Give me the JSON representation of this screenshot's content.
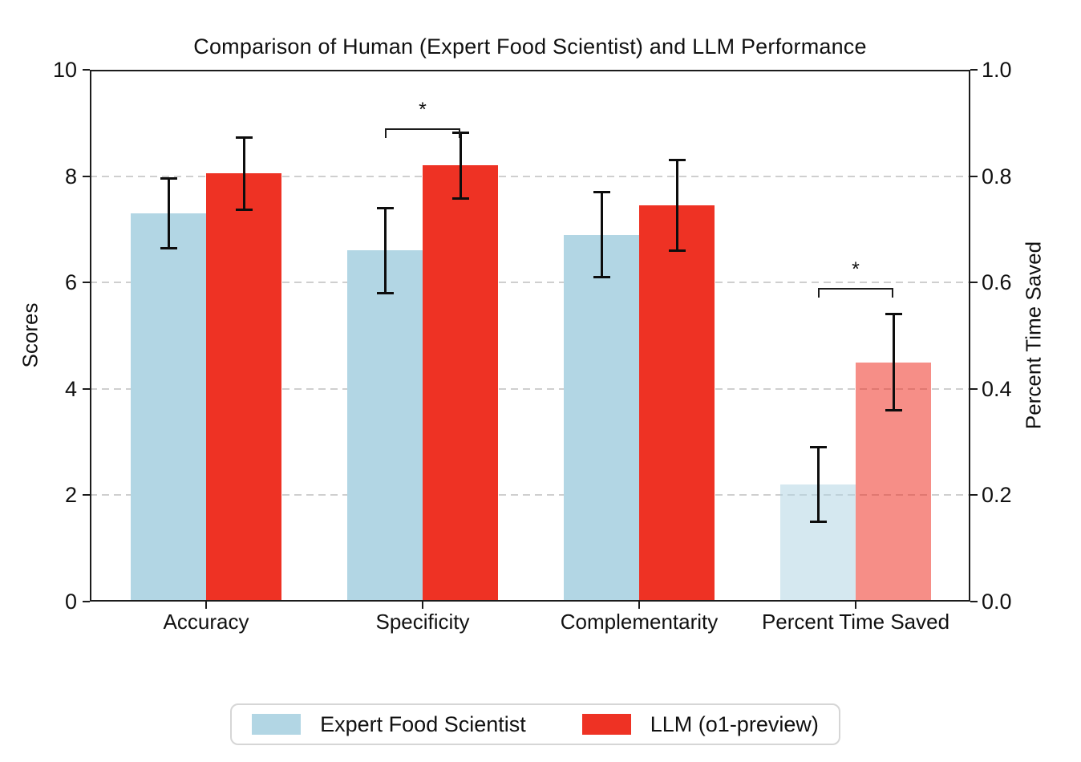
{
  "page": {
    "background": "#ffffff",
    "text_color": "#111111",
    "axis_color": "#1c1c1c",
    "gridline_color": "#cfcfcf"
  },
  "chart_data": {
    "type": "bar",
    "title": "Comparison of Human (Expert Food Scientist) and LLM Performance",
    "categories": [
      "Accuracy",
      "Specificity",
      "Complementarity",
      "Percent Time Saved"
    ],
    "category_axis": [
      "left",
      "left",
      "left",
      "right"
    ],
    "left_axis": {
      "label": "Scores",
      "ticks": [
        0,
        2,
        4,
        6,
        8,
        10
      ],
      "lim": [
        0,
        10
      ]
    },
    "right_axis": {
      "label": "Percent Time Saved",
      "ticks": [
        "0.0",
        "0.2",
        "0.4",
        "0.6",
        "0.8",
        "1.0"
      ],
      "tick_values": [
        0.0,
        0.2,
        0.4,
        0.6,
        0.8,
        1.0
      ],
      "lim": [
        0,
        1
      ]
    },
    "grid": {
      "values_left_scale": [
        2,
        4,
        6,
        8
      ],
      "style": "dashed",
      "on": true
    },
    "series": [
      {
        "name": "Expert Food Scientist",
        "color": "#B2D6E4",
        "values": [
          7.3,
          6.6,
          6.9,
          0.22
        ],
        "errors": [
          0.65,
          0.8,
          0.8,
          0.07
        ]
      },
      {
        "name": "LLM (o1-preview)",
        "color": "#EE3224",
        "values": [
          8.05,
          8.2,
          7.45,
          0.45
        ],
        "errors": [
          0.68,
          0.62,
          0.85,
          0.09
        ]
      }
    ],
    "muted_category": "Percent Time Saved",
    "muted_opacity": 0.55,
    "significance": [
      {
        "label": "*",
        "category": "Specificity",
        "bracket_y_scores": 8.9,
        "tick_drop_scores": 0.18
      },
      {
        "label": "*",
        "category": "Percent Time Saved",
        "bracket_y_scores": 5.9,
        "tick_drop_scores": 0.18
      }
    ],
    "legend": {
      "position": "bottom",
      "entries": [
        {
          "label": "Expert Food Scientist",
          "color": "#B2D6E4"
        },
        {
          "label": "LLM (o1-preview)",
          "color": "#EE3224"
        }
      ]
    }
  }
}
